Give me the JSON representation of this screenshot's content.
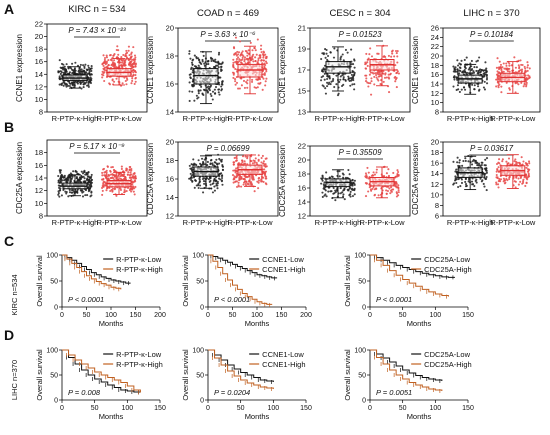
{
  "panel_letters": [
    "A",
    "B",
    "C",
    "D"
  ],
  "side_labels": {
    "C": "KIRC n=534",
    "D": "LIHC n=370"
  },
  "chart_data": [
    {
      "type": "box",
      "panel": "A",
      "title": "KIRC n = 534",
      "p_label": "P = 7.43 × 10⁻²³",
      "ylabel": "CCNE1 expression",
      "ylim": [
        8,
        22
      ],
      "yticks": [
        8,
        10,
        12,
        14,
        16,
        18,
        20,
        22
      ],
      "categories": [
        "R-PTP-κ-High",
        "R-PTP-κ-Low"
      ],
      "colors": [
        "#111111",
        "#e03030"
      ],
      "boxes": [
        {
          "q1": 13.0,
          "median": 13.4,
          "q3": 13.9,
          "whisker_low": 11.8,
          "whisker_high": 15.2,
          "n": 267,
          "range": [
            11.0,
            16.5
          ]
        },
        {
          "q1": 13.7,
          "median": 14.3,
          "q3": 14.9,
          "whisker_low": 12.3,
          "whisker_high": 16.5,
          "n": 267,
          "range": [
            11.5,
            19.0
          ]
        }
      ]
    },
    {
      "type": "box",
      "panel": "A",
      "title": "COAD n = 469",
      "p_label": "P = 3.63 × 10⁻⁶",
      "ylabel": "CCNE1 expression",
      "ylim": [
        14,
        20
      ],
      "yticks": [
        14,
        16,
        18,
        20
      ],
      "categories": [
        "R-PTP-κ-High",
        "R-PTP-κ-Low"
      ],
      "colors": [
        "#111111",
        "#e03030"
      ],
      "boxes": [
        {
          "q1": 16.0,
          "median": 16.6,
          "q3": 17.1,
          "whisker_low": 14.6,
          "whisker_high": 18.3,
          "n": 234,
          "range": [
            14.3,
            18.8
          ]
        },
        {
          "q1": 16.5,
          "median": 17.0,
          "q3": 17.4,
          "whisker_low": 15.3,
          "whisker_high": 18.7,
          "n": 235,
          "range": [
            15.0,
            19.5
          ]
        }
      ]
    },
    {
      "type": "box",
      "panel": "A",
      "title": "CESC n = 304",
      "p_label": "P = 0.01523",
      "ylabel": "CCNE1 expression",
      "ylim": [
        13,
        21
      ],
      "yticks": [
        13,
        15,
        17,
        19,
        21
      ],
      "categories": [
        "R-PTP-κ-High",
        "R-PTP-κ-Low"
      ],
      "colors": [
        "#111111",
        "#e03030"
      ],
      "boxes": [
        {
          "q1": 16.7,
          "median": 17.3,
          "q3": 17.8,
          "whisker_low": 15.0,
          "whisker_high": 19.2,
          "n": 152,
          "range": [
            14.0,
            19.8
          ]
        },
        {
          "q1": 17.0,
          "median": 17.5,
          "q3": 18.0,
          "whisker_low": 15.5,
          "whisker_high": 19.3,
          "n": 152,
          "range": [
            14.5,
            19.7
          ]
        }
      ]
    },
    {
      "type": "box",
      "panel": "A",
      "title": "LIHC n = 370",
      "p_label": "P = 0.10184",
      "ylabel": "CCNE1 expression",
      "ylim": [
        8,
        26
      ],
      "yticks": [
        8,
        10,
        12,
        14,
        16,
        18,
        20,
        22,
        24,
        26
      ],
      "categories": [
        "R-PTP-κ-High",
        "R-PTP-κ-Low"
      ],
      "colors": [
        "#111111",
        "#e03030"
      ],
      "boxes": [
        {
          "q1": 14.2,
          "median": 15.1,
          "q3": 15.9,
          "whisker_low": 11.8,
          "whisker_high": 18.2,
          "n": 185,
          "range": [
            11.5,
            20.0
          ]
        },
        {
          "q1": 14.5,
          "median": 15.4,
          "q3": 16.3,
          "whisker_low": 12.0,
          "whisker_high": 18.8,
          "n": 185,
          "range": [
            11.5,
            20.3
          ]
        }
      ]
    },
    {
      "type": "box",
      "panel": "B",
      "title": "",
      "p_label": "P = 5.17 × 10⁻⁹",
      "ylabel": "CDC25A expression",
      "ylim": [
        8,
        20
      ],
      "yticks": [
        8,
        10,
        12,
        14,
        16,
        18
      ],
      "categories": [
        "R-PTP-κ-High",
        "R-PTP-κ-Low"
      ],
      "colors": [
        "#111111",
        "#e03030"
      ],
      "boxes": [
        {
          "q1": 12.3,
          "median": 12.7,
          "q3": 13.2,
          "whisker_low": 11.2,
          "whisker_high": 14.5,
          "n": 267,
          "range": [
            10.5,
            16.0
          ]
        },
        {
          "q1": 12.6,
          "median": 13.1,
          "q3": 13.6,
          "whisker_low": 11.4,
          "whisker_high": 14.9,
          "n": 267,
          "range": [
            10.8,
            16.5
          ]
        }
      ]
    },
    {
      "type": "box",
      "panel": "B",
      "title": "",
      "p_label": "P = 0.06699",
      "ylabel": "CDC25A expression",
      "ylim": [
        12,
        20
      ],
      "yticks": [
        12,
        14,
        16,
        18,
        20
      ],
      "categories": [
        "R-PTP-κ-High",
        "R-PTP-κ-Low"
      ],
      "colors": [
        "#111111",
        "#e03030"
      ],
      "boxes": [
        {
          "q1": 16.3,
          "median": 16.8,
          "q3": 17.3,
          "whisker_low": 15.0,
          "whisker_high": 18.5,
          "n": 234,
          "range": [
            14.2,
            19.0
          ]
        },
        {
          "q1": 16.5,
          "median": 17.0,
          "q3": 17.5,
          "whisker_low": 15.2,
          "whisker_high": 18.6,
          "n": 235,
          "range": [
            14.5,
            19.2
          ]
        }
      ]
    },
    {
      "type": "box",
      "panel": "B",
      "title": "",
      "p_label": "P = 0.35509",
      "ylabel": "CDC25A expression",
      "ylim": [
        12,
        22
      ],
      "yticks": [
        12,
        14,
        16,
        18,
        20,
        22
      ],
      "categories": [
        "R-PTP-κ-High",
        "R-PTP-κ-Low"
      ],
      "colors": [
        "#111111",
        "#e03030"
      ],
      "boxes": [
        {
          "q1": 16.2,
          "median": 16.8,
          "q3": 17.3,
          "whisker_low": 14.6,
          "whisker_high": 18.6,
          "n": 152,
          "range": [
            14.0,
            19.0
          ]
        },
        {
          "q1": 16.3,
          "median": 16.9,
          "q3": 17.5,
          "whisker_low": 14.6,
          "whisker_high": 19.0,
          "n": 152,
          "range": [
            14.0,
            19.5
          ]
        }
      ]
    },
    {
      "type": "box",
      "panel": "B",
      "title": "",
      "p_label": "P = 0.03617",
      "ylabel": "CDC25A expression",
      "ylim": [
        6,
        20
      ],
      "yticks": [
        6,
        8,
        10,
        12,
        14,
        16,
        18,
        20
      ],
      "categories": [
        "R-PTP-κ-High",
        "R-PTP-κ-Low"
      ],
      "colors": [
        "#111111",
        "#e03030"
      ],
      "boxes": [
        {
          "q1": 13.3,
          "median": 14.2,
          "q3": 15.1,
          "whisker_low": 11.0,
          "whisker_high": 17.3,
          "n": 185,
          "range": [
            10.5,
            18.0
          ]
        },
        {
          "q1": 13.7,
          "median": 14.6,
          "q3": 15.5,
          "whisker_low": 11.2,
          "whisker_high": 17.6,
          "n": 185,
          "range": [
            10.5,
            18.3
          ]
        }
      ]
    },
    {
      "type": "line",
      "panel": "C",
      "p_label": "P < 0.0001",
      "ylabel": "Overall survival",
      "xlabel": "Months",
      "xlim": [
        0,
        200
      ],
      "ylim": [
        0,
        100
      ],
      "xticks": [
        0,
        50,
        100,
        150,
        200
      ],
      "yticks": [
        0,
        50,
        100
      ],
      "series": [
        {
          "name": "R-PTP-κ-Low",
          "color": "#111111",
          "x": [
            0,
            10,
            20,
            30,
            40,
            50,
            60,
            70,
            80,
            90,
            100,
            110,
            120,
            130,
            140
          ],
          "y": [
            100,
            95,
            90,
            84,
            78,
            72,
            66,
            62,
            58,
            55,
            52,
            50,
            48,
            46,
            46
          ]
        },
        {
          "name": "R-PTP-κ-High",
          "color": "#c06020",
          "x": [
            0,
            10,
            20,
            30,
            40,
            50,
            60,
            70,
            80,
            90,
            100,
            110,
            120
          ],
          "y": [
            100,
            92,
            84,
            76,
            68,
            60,
            54,
            49,
            45,
            42,
            38,
            36,
            34
          ]
        }
      ]
    },
    {
      "type": "line",
      "panel": "C",
      "p_label": "P < 0.0001",
      "ylabel": "Overall survival",
      "xlabel": "Months",
      "xlim": [
        0,
        200
      ],
      "ylim": [
        0,
        100
      ],
      "xticks": [
        0,
        50,
        100,
        150,
        200
      ],
      "yticks": [
        0,
        50,
        100
      ],
      "series": [
        {
          "name": "CCNE1-Low",
          "color": "#111111",
          "x": [
            0,
            10,
            20,
            30,
            40,
            50,
            60,
            70,
            80,
            90,
            100,
            110,
            120,
            130,
            140
          ],
          "y": [
            100,
            97,
            94,
            90,
            86,
            82,
            78,
            74,
            70,
            66,
            62,
            60,
            58,
            56,
            55
          ]
        },
        {
          "name": "CCNE1-High",
          "color": "#c06020",
          "x": [
            0,
            10,
            20,
            30,
            40,
            50,
            60,
            70,
            80,
            90,
            100,
            110,
            120,
            130
          ],
          "y": [
            100,
            88,
            76,
            64,
            52,
            42,
            34,
            26,
            20,
            15,
            10,
            7,
            5,
            4
          ]
        }
      ]
    },
    {
      "type": "line",
      "panel": "C",
      "p_label": "P < 0.0001",
      "ylabel": "Overall survival",
      "xlabel": "Months",
      "xlim": [
        0,
        150
      ],
      "ylim": [
        0,
        100
      ],
      "xticks": [
        0,
        50,
        100,
        150
      ],
      "yticks": [
        0,
        50,
        100
      ],
      "series": [
        {
          "name": "CDC25A-Low",
          "color": "#111111",
          "x": [
            0,
            10,
            20,
            30,
            40,
            50,
            60,
            70,
            80,
            90,
            100,
            110,
            120,
            130
          ],
          "y": [
            100,
            95,
            90,
            85,
            80,
            76,
            72,
            68,
            65,
            62,
            60,
            58,
            57,
            57
          ]
        },
        {
          "name": "CDC25A-High",
          "color": "#c06020",
          "x": [
            0,
            10,
            20,
            30,
            40,
            50,
            60,
            70,
            80,
            90,
            100,
            110,
            120
          ],
          "y": [
            100,
            90,
            80,
            70,
            61,
            53,
            46,
            40,
            34,
            29,
            25,
            22,
            20
          ]
        }
      ]
    },
    {
      "type": "line",
      "panel": "D",
      "p_label": "P = 0.008",
      "ylabel": "Overall survival",
      "xlabel": "Months",
      "xlim": [
        0,
        150
      ],
      "ylim": [
        0,
        100
      ],
      "xticks": [
        0,
        50,
        100,
        150
      ],
      "yticks": [
        0,
        50,
        100
      ],
      "series": [
        {
          "name": "R-PTP-κ-Low",
          "color": "#111111",
          "x": [
            0,
            10,
            20,
            30,
            40,
            50,
            60,
            70,
            80,
            90,
            100,
            110,
            120
          ],
          "y": [
            100,
            85,
            72,
            60,
            50,
            42,
            36,
            30,
            25,
            20,
            18,
            16,
            15
          ]
        },
        {
          "name": "R-PTP-κ-High",
          "color": "#c06020",
          "x": [
            0,
            10,
            20,
            30,
            40,
            50,
            60,
            70,
            80,
            90,
            100,
            110,
            120
          ],
          "y": [
            100,
            90,
            80,
            72,
            64,
            56,
            50,
            45,
            40,
            35,
            28,
            20,
            15
          ]
        }
      ]
    },
    {
      "type": "line",
      "panel": "D",
      "p_label": "P = 0.0204",
      "ylabel": "Overall survival",
      "xlabel": "Months",
      "xlim": [
        0,
        150
      ],
      "ylim": [
        0,
        100
      ],
      "xticks": [
        0,
        50,
        100,
        150
      ],
      "yticks": [
        0,
        50,
        100
      ],
      "series": [
        {
          "name": "CCNE1-Low",
          "color": "#111111",
          "x": [
            0,
            10,
            20,
            30,
            40,
            50,
            60,
            70,
            80,
            90,
            100
          ],
          "y": [
            100,
            90,
            80,
            70,
            62,
            55,
            50,
            45,
            40,
            38,
            36
          ]
        },
        {
          "name": "CCNE1-High",
          "color": "#c06020",
          "x": [
            0,
            10,
            20,
            30,
            40,
            50,
            60,
            70,
            80,
            90,
            100
          ],
          "y": [
            100,
            84,
            70,
            58,
            48,
            40,
            34,
            30,
            26,
            24,
            22
          ]
        }
      ]
    },
    {
      "type": "line",
      "panel": "D",
      "p_label": "P = 0.0051",
      "ylabel": "Overall survival",
      "xlabel": "Months",
      "xlim": [
        0,
        150
      ],
      "ylim": [
        0,
        100
      ],
      "xticks": [
        0,
        50,
        100,
        150
      ],
      "yticks": [
        0,
        50,
        100
      ],
      "series": [
        {
          "name": "CDC25A-Low",
          "color": "#111111",
          "x": [
            0,
            10,
            20,
            30,
            40,
            50,
            60,
            70,
            80,
            90,
            100,
            110
          ],
          "y": [
            100,
            92,
            84,
            76,
            68,
            60,
            54,
            49,
            45,
            42,
            40,
            38
          ]
        },
        {
          "name": "CDC25A-High",
          "color": "#c06020",
          "x": [
            0,
            10,
            20,
            30,
            40,
            50,
            60,
            70,
            80,
            90,
            100,
            110
          ],
          "y": [
            100,
            85,
            72,
            60,
            50,
            42,
            35,
            30,
            26,
            22,
            20,
            18
          ]
        }
      ]
    }
  ]
}
